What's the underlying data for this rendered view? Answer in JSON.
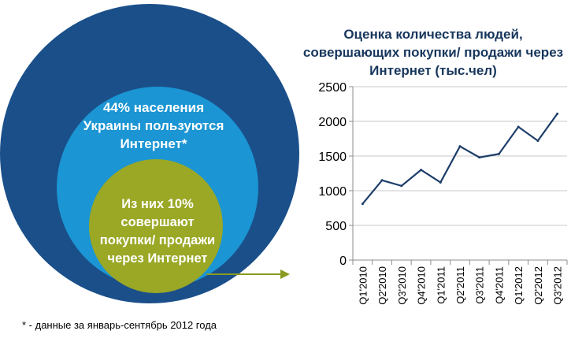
{
  "circles": {
    "outer_text": "44% населения\nУкраины пользуются\nИнтернет*",
    "inner_text": "Из них 10%\nсовершают\nпокупки/ продажи\nчерез Интернет",
    "colors": {
      "outer": "#1a4f8a",
      "middle": "#1b95d3",
      "inner": "#9aa826",
      "arrow": "#8a9a20"
    }
  },
  "footnote": "* - данные за январь-сентябрь 2012 года",
  "chart_data": {
    "type": "line",
    "title": "Оценка количества людей, совершающих покупки/ продажи через Интернет (тыс.чел)",
    "categories": [
      "Q1'2010",
      "Q2'2010",
      "Q3'2010",
      "Q4'2010",
      "Q1'2011",
      "Q2'2011",
      "Q3'2011",
      "Q4'2011",
      "Q1'2012",
      "Q2'2012",
      "Q3'2012"
    ],
    "values": [
      810,
      1150,
      1070,
      1300,
      1120,
      1640,
      1480,
      1530,
      1920,
      1720,
      2110
    ],
    "ylim": [
      0,
      2500
    ],
    "yticks": [
      "0",
      "500",
      "1000",
      "1500",
      "2000",
      "2500"
    ],
    "grid": true,
    "line_color": "#1f3f6b"
  }
}
